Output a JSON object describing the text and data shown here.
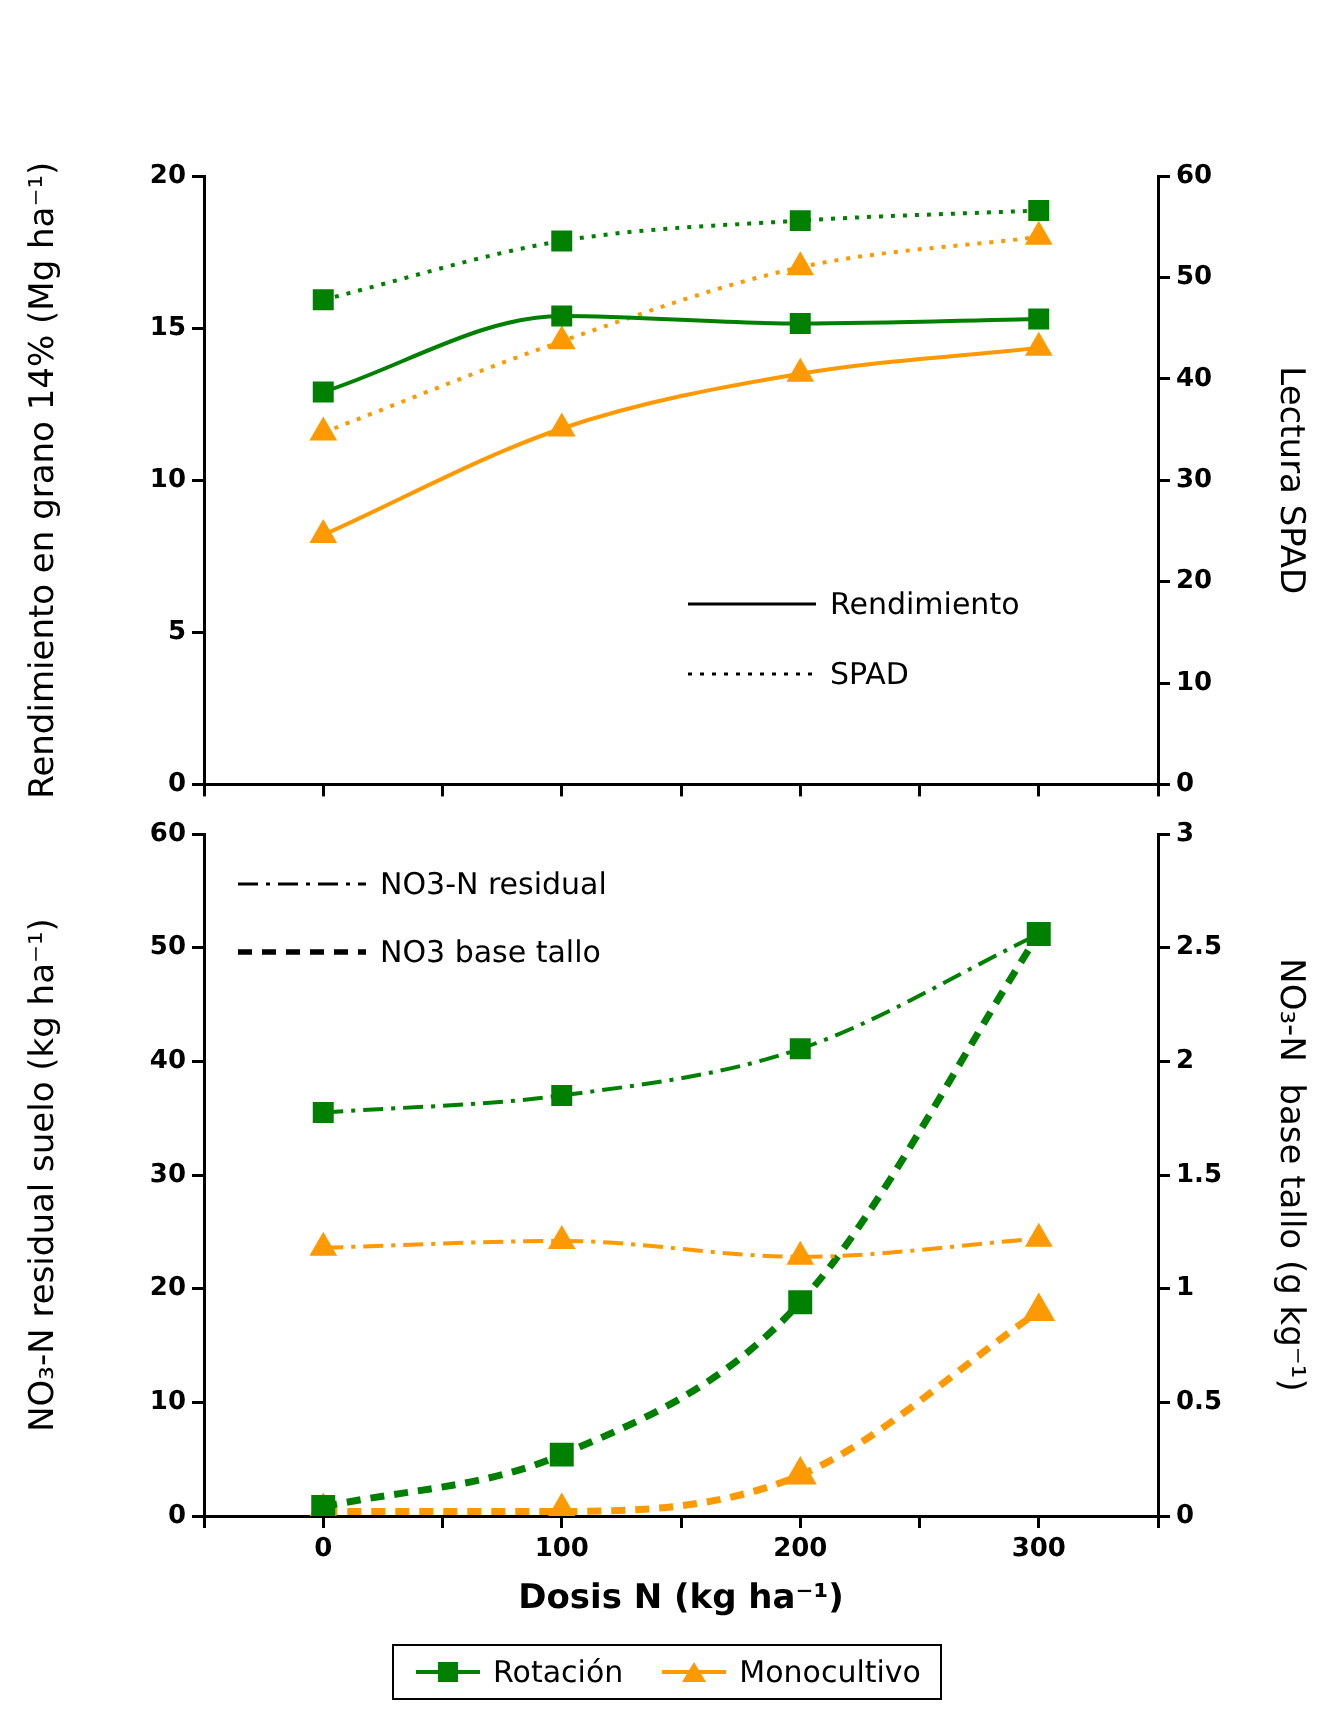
{
  "chart_data": [
    {
      "type": "line",
      "ylabel": "Rendimiento en grano 14% (Mg ha⁻¹)",
      "y2label": "Lectura SPAD",
      "tick_labels": "y",
      "grid": false,
      "annotations": [
        "Rendimiento",
        "SPAD"
      ],
      "xlim": [
        -50,
        350
      ],
      "xticks": [
        {
          "value": -50,
          "label": null
        },
        {
          "value": 0,
          "label": null
        },
        {
          "value": 50,
          "label": null
        },
        {
          "value": 100,
          "label": null
        },
        {
          "value": 150,
          "label": null
        },
        {
          "value": 200,
          "label": null
        },
        {
          "value": 250,
          "label": null
        },
        {
          "value": 300,
          "label": null
        },
        {
          "value": 350,
          "label": null
        }
      ],
      "ylim": [
        0,
        20
      ],
      "yticks": [
        0,
        5,
        10,
        15,
        20
      ],
      "y2lim": [
        0,
        60
      ],
      "y2ticks": [
        0,
        10,
        20,
        30,
        40,
        50,
        60
      ],
      "x": [
        0,
        100,
        200,
        300
      ],
      "series": [
        {
          "color": "#008000",
          "marker": "square",
          "line_style": "solid",
          "values": [
            12.9,
            15.4,
            15.15,
            15.3
          ]
        },
        {
          "color": "#ff9900",
          "marker": "triangle",
          "line_style": "solid",
          "values": [
            8.2,
            11.7,
            13.5,
            14.35
          ]
        },
        {
          "color": "#008000",
          "marker": "square",
          "line_style": "dotted",
          "axis": "y2",
          "values": [
            47.8,
            53.6,
            55.6,
            56.6
          ]
        },
        {
          "color": "#ff9900",
          "marker": "triangle",
          "line_style": "dotted",
          "axis": "y2",
          "values": [
            34.7,
            43.7,
            51.0,
            54.0
          ]
        }
      ]
    },
    {
      "type": "line",
      "xlabel": "Dosis N (kg ha⁻¹)",
      "ylabel": "NO₃-N residual suelo (kg ha⁻¹)",
      "y2label": "NO₃-N  base tallo (g kg⁻¹)",
      "grid": false,
      "legend": "bottom",
      "annotations": [
        "NO3-N residual",
        "NO3 base tallo"
      ],
      "xlim": [
        -50,
        350
      ],
      "xticks": [
        {
          "value": -50,
          "label": null
        },
        0,
        {
          "value": 50,
          "label": null
        },
        100,
        {
          "value": 150,
          "label": null
        },
        200,
        {
          "value": 250,
          "label": null
        },
        300,
        {
          "value": 350,
          "label": null
        }
      ],
      "ylim": [
        0,
        60
      ],
      "yticks": [
        0,
        10,
        20,
        30,
        40,
        50,
        60
      ],
      "y2lim": [
        0,
        3
      ],
      "y2ticks": [
        0,
        0.5,
        1,
        1.5,
        2,
        2.5,
        3
      ],
      "x": [
        0,
        100,
        200,
        300
      ],
      "series": [
        {
          "name": "Rotación",
          "color": "#008000",
          "marker": "square",
          "line_style": "dashdot",
          "values": [
            35.5,
            37.0,
            41.1,
            51.2
          ]
        },
        {
          "name": "Monocultivo",
          "color": "#ff9900",
          "marker": "triangle",
          "line_style": "dashdot",
          "values": [
            23.6,
            24.2,
            22.8,
            24.4
          ]
        },
        {
          "color": "#008000",
          "marker": "square",
          "line_style": "dashed",
          "axis": "y2",
          "values": [
            0.04,
            0.27,
            0.94,
            2.56
          ]
        },
        {
          "color": "#ff9900",
          "marker": "triangle",
          "line_style": "dashed",
          "axis": "y2",
          "values": [
            0.02,
            0.02,
            0.18,
            0.9
          ]
        }
      ]
    }
  ]
}
